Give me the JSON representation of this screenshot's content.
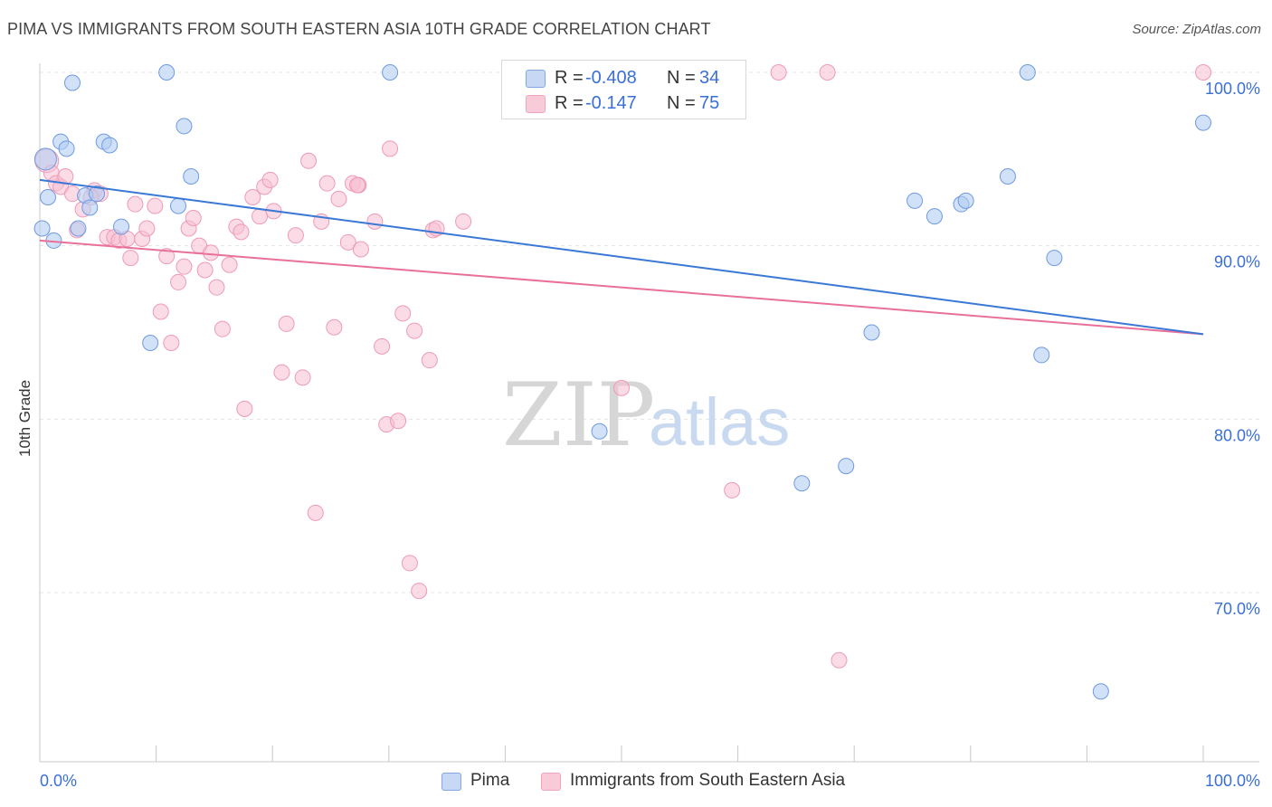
{
  "header": {
    "title": "PIMA VS IMMIGRANTS FROM SOUTH EASTERN ASIA 10TH GRADE CORRELATION CHART",
    "source": "Source: ZipAtlas.com"
  },
  "watermark": {
    "zip": "ZIP",
    "atlas": "atlas"
  },
  "legend": {
    "rows": [
      {
        "r_label": "R =",
        "r_value": "-0.408",
        "n_label": "N =",
        "n_value": "34"
      },
      {
        "r_label": "R =",
        "r_value": "-0.147",
        "n_label": "N =",
        "n_value": "75"
      }
    ]
  },
  "chart_data": {
    "type": "scatter",
    "title": "PIMA VS IMMIGRANTS FROM SOUTH EASTERN ASIA 10TH GRADE CORRELATION CHART",
    "xlabel": "",
    "ylabel": "10th Grade",
    "xlim": [
      0,
      100
    ],
    "ylim": [
      60,
      101.5
    ],
    "x_tick_labels": [
      "0.0%",
      "100.0%"
    ],
    "y_ticks": [
      70,
      80,
      90,
      100
    ],
    "y_tick_labels": [
      "70.0%",
      "80.0%",
      "90.0%",
      "100.0%"
    ],
    "grid": true,
    "legend_position": "bottom",
    "colors": {
      "pima": "#7fa8e8",
      "immigrants": "#f2a3bd",
      "pima_line": "#3a78d6",
      "immigrants_line": "#e8709a"
    },
    "series": [
      {
        "name": "Pima",
        "points": [
          [
            0.2,
            91.0
          ],
          [
            0.7,
            92.8
          ],
          [
            1.2,
            90.3
          ],
          [
            1.8,
            96.0
          ],
          [
            2.3,
            95.6
          ],
          [
            2.8,
            99.4
          ],
          [
            3.3,
            91.0
          ],
          [
            3.9,
            92.9
          ],
          [
            4.3,
            92.2
          ],
          [
            4.9,
            93.0
          ],
          [
            5.5,
            96.0
          ],
          [
            6.0,
            95.8
          ],
          [
            7.0,
            91.1
          ],
          [
            9.5,
            84.4
          ],
          [
            10.9,
            100.0
          ],
          [
            12.4,
            96.9
          ],
          [
            13.0,
            94.0
          ],
          [
            11.9,
            92.3
          ],
          [
            30.1,
            100.0
          ],
          [
            48.1,
            79.3
          ],
          [
            65.5,
            76.3
          ],
          [
            69.3,
            77.3
          ],
          [
            71.5,
            85.0
          ],
          [
            75.2,
            92.6
          ],
          [
            76.9,
            91.7
          ],
          [
            79.2,
            92.4
          ],
          [
            79.6,
            92.6
          ],
          [
            83.2,
            94.0
          ],
          [
            84.9,
            100.0
          ],
          [
            86.1,
            83.7
          ],
          [
            87.2,
            89.3
          ],
          [
            91.2,
            64.3
          ],
          [
            100.0,
            97.1
          ],
          [
            0.5,
            95.0
          ]
        ],
        "trend": [
          [
            0,
            93.8
          ],
          [
            100,
            84.9
          ]
        ]
      },
      {
        "name": "Immigrants from South Eastern Asia",
        "points": [
          [
            0.6,
            94.9
          ],
          [
            1.0,
            94.2
          ],
          [
            1.4,
            93.6
          ],
          [
            1.8,
            93.4
          ],
          [
            2.2,
            94.0
          ],
          [
            2.8,
            93.0
          ],
          [
            3.2,
            90.9
          ],
          [
            3.7,
            92.1
          ],
          [
            4.7,
            93.2
          ],
          [
            5.2,
            93.0
          ],
          [
            5.8,
            90.5
          ],
          [
            6.4,
            90.5
          ],
          [
            6.8,
            90.3
          ],
          [
            7.5,
            90.4
          ],
          [
            7.8,
            89.3
          ],
          [
            8.2,
            92.4
          ],
          [
            8.8,
            90.4
          ],
          [
            9.2,
            91.0
          ],
          [
            9.9,
            92.3
          ],
          [
            10.4,
            86.2
          ],
          [
            10.9,
            89.4
          ],
          [
            11.3,
            84.4
          ],
          [
            11.9,
            87.9
          ],
          [
            12.4,
            88.8
          ],
          [
            12.8,
            91.0
          ],
          [
            13.2,
            91.6
          ],
          [
            13.7,
            90.0
          ],
          [
            14.2,
            88.6
          ],
          [
            14.7,
            89.6
          ],
          [
            15.2,
            87.6
          ],
          [
            15.7,
            85.2
          ],
          [
            16.3,
            88.9
          ],
          [
            16.9,
            91.1
          ],
          [
            17.3,
            90.8
          ],
          [
            17.6,
            80.6
          ],
          [
            18.3,
            92.8
          ],
          [
            18.9,
            91.7
          ],
          [
            19.3,
            93.4
          ],
          [
            19.8,
            93.8
          ],
          [
            20.1,
            92.0
          ],
          [
            20.8,
            82.7
          ],
          [
            21.2,
            85.5
          ],
          [
            22.0,
            90.6
          ],
          [
            22.6,
            82.4
          ],
          [
            23.1,
            94.9
          ],
          [
            23.7,
            74.6
          ],
          [
            24.2,
            91.4
          ],
          [
            24.7,
            93.6
          ],
          [
            25.3,
            85.3
          ],
          [
            25.7,
            92.7
          ],
          [
            26.5,
            90.2
          ],
          [
            26.9,
            93.6
          ],
          [
            27.4,
            93.5
          ],
          [
            27.6,
            89.8
          ],
          [
            28.8,
            91.4
          ],
          [
            29.4,
            84.2
          ],
          [
            29.8,
            79.7
          ],
          [
            30.1,
            95.6
          ],
          [
            30.8,
            79.9
          ],
          [
            31.2,
            86.1
          ],
          [
            31.8,
            71.7
          ],
          [
            32.2,
            85.1
          ],
          [
            32.6,
            70.1
          ],
          [
            33.5,
            83.4
          ],
          [
            33.8,
            90.9
          ],
          [
            34.1,
            91.0
          ],
          [
            36.4,
            91.4
          ],
          [
            50.0,
            81.8
          ],
          [
            59.5,
            75.9
          ],
          [
            63.5,
            100.0
          ],
          [
            67.7,
            100.0
          ],
          [
            68.7,
            66.1
          ],
          [
            100.0,
            100.0
          ],
          [
            27.3,
            93.5
          ],
          [
            4.4,
            92.8
          ]
        ],
        "trend": [
          [
            0,
            90.3
          ],
          [
            100,
            84.9
          ]
        ]
      }
    ]
  }
}
